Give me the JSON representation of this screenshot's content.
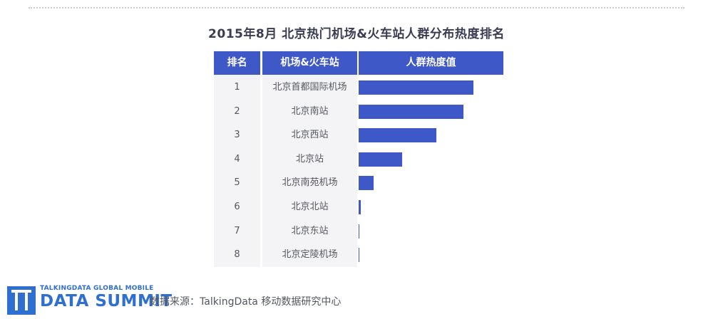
{
  "chart_data": {
    "type": "bar",
    "title": "2015年8月 北京热门机场&火车站人群分布热度排名",
    "columns": [
      "排名",
      "机场&火车站",
      "人群热度值"
    ],
    "ranks": [
      "1",
      "2",
      "3",
      "4",
      "5",
      "6",
      "7",
      "8"
    ],
    "categories": [
      "北京首都国际机场",
      "北京南站",
      "北京西站",
      "北京站",
      "北京南苑机场",
      "北京北站",
      "北京东站",
      "北京定陵机场"
    ],
    "values": [
      100,
      91,
      68,
      38,
      13,
      2,
      0.6,
      0.3
    ],
    "orientation": "horizontal",
    "xlim": [
      0,
      100
    ]
  },
  "footer": {
    "logo_top": "TALKINGDATA GLOBAL MOBILE",
    "logo_bottom": "DATA SUMMIT",
    "source": "数据来源：TalkingData 移动数据研究中心"
  },
  "colors": {
    "bar": "#3f58c8",
    "header": "#3f58c8",
    "logo": "#2f6fd0"
  }
}
